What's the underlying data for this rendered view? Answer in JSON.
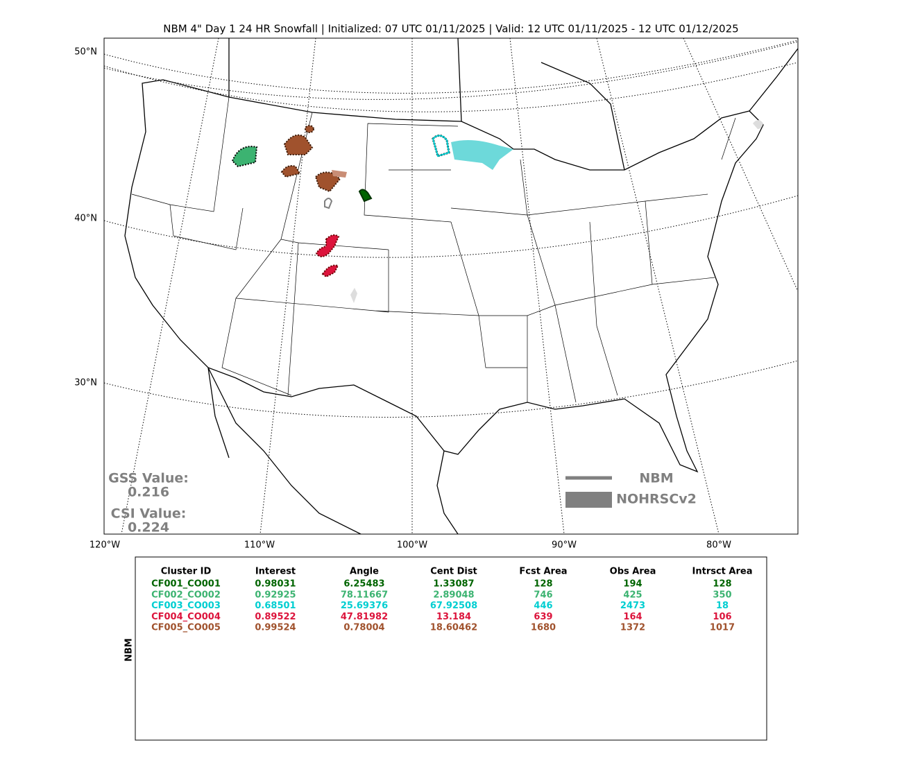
{
  "title": "NBM 4\" Day 1 24 HR Snowfall | Initialized: 07 UTC 01/11/2025 | Valid: 12 UTC 01/11/2025 - 12 UTC 01/12/2025",
  "map": {
    "lat_labels": [
      "50°N",
      "40°N",
      "30°N"
    ],
    "lon_labels": [
      "120°W",
      "110°W",
      "100°W",
      "90°W",
      "80°W"
    ]
  },
  "scores": {
    "gss_label": "GSS Value:",
    "gss": "0.216",
    "csi_label": "CSI Value:",
    "csi": "0.224"
  },
  "legend": {
    "line_label": "NBM",
    "fill_label": "NOHRSCv2",
    "color": "#808080"
  },
  "table": {
    "side_label": "NBM",
    "columns": [
      "Cluster ID",
      "Interest",
      "Angle",
      "Cent Dist",
      "Fcst Area",
      "Obs Area",
      "Intrsct Area"
    ],
    "rows": [
      {
        "color": "#006400",
        "cells": [
          "CF001_CO001",
          "0.98031",
          "6.25483",
          "1.33087",
          "128",
          "194",
          "128"
        ]
      },
      {
        "color": "#3cb371",
        "cells": [
          "CF002_CO002",
          "0.92925",
          "78.11667",
          "2.89048",
          "746",
          "425",
          "350"
        ]
      },
      {
        "color": "#00ced1",
        "cells": [
          "CF003_CO003",
          "0.68501",
          "25.69376",
          "67.92508",
          "446",
          "2473",
          "18"
        ]
      },
      {
        "color": "#dc143c",
        "cells": [
          "CF004_CO004",
          "0.89522",
          "47.81982",
          "13.184",
          "639",
          "164",
          "106"
        ]
      },
      {
        "color": "#a0522d",
        "cells": [
          "CF005_CO005",
          "0.99524",
          "0.78004",
          "18.60462",
          "1680",
          "1372",
          "1017"
        ]
      }
    ]
  }
}
